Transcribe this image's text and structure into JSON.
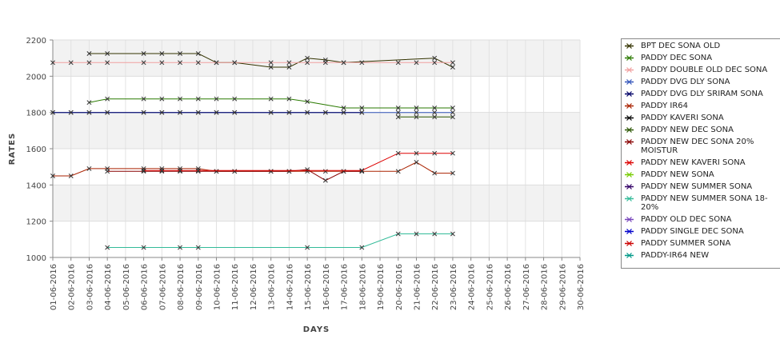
{
  "chart_data": {
    "type": "line",
    "xlabel": "DAYS",
    "ylabel": "RATES",
    "ylim": [
      1000,
      2200
    ],
    "yticks": [
      "1000",
      "1200",
      "1400",
      "1600",
      "1800",
      "2000",
      "2200"
    ],
    "x": [
      "01-06-2016",
      "02-06-2016",
      "03-06-2016",
      "04-06-2016",
      "05-06-2016",
      "06-06-2016",
      "07-06-2016",
      "08-06-2016",
      "09-06-2016",
      "10-06-2016",
      "11-06-2016",
      "12-06-2016",
      "13-06-2016",
      "14-06-2016",
      "15-06-2016",
      "16-06-2016",
      "17-06-2016",
      "18-06-2016",
      "19-06-2016",
      "20-06-2016",
      "21-06-2016",
      "22-06-2016",
      "23-06-2016",
      "24-06-2016",
      "25-06-2016",
      "26-06-2016",
      "27-06-2016",
      "28-06-2016",
      "29-06-2016",
      "30-06-2016"
    ],
    "grid": true,
    "legend_position": "right",
    "series": [
      {
        "name": "BPT DEC SONA OLD",
        "color": "#333300",
        "points": [
          [
            2,
            2125
          ],
          [
            3,
            2125
          ],
          [
            5,
            2125
          ],
          [
            6,
            2125
          ],
          [
            7,
            2125
          ],
          [
            8,
            2125
          ],
          [
            9,
            2075
          ],
          [
            10,
            2075
          ],
          [
            12,
            2050
          ],
          [
            13,
            2050
          ],
          [
            14,
            2100
          ],
          [
            15,
            2090
          ],
          [
            16,
            2075
          ],
          [
            21,
            2100
          ],
          [
            22,
            2050
          ]
        ]
      },
      {
        "name": "PADDY DEC SONA",
        "color": "#2a7a00",
        "points": [
          [
            2,
            1855
          ],
          [
            3,
            1875
          ],
          [
            5,
            1875
          ],
          [
            6,
            1875
          ],
          [
            7,
            1875
          ],
          [
            8,
            1875
          ],
          [
            9,
            1875
          ],
          [
            10,
            1875
          ],
          [
            12,
            1875
          ],
          [
            13,
            1875
          ],
          [
            14,
            1860
          ],
          [
            16,
            1825
          ],
          [
            17,
            1825
          ],
          [
            19,
            1825
          ],
          [
            20,
            1825
          ],
          [
            21,
            1825
          ],
          [
            22,
            1825
          ]
        ]
      },
      {
        "name": "PADDY DOUBLE OLD DEC SONA",
        "color": "#f0a0a0",
        "points": [
          [
            0,
            2075
          ],
          [
            1,
            2075
          ],
          [
            2,
            2075
          ],
          [
            3,
            2075
          ],
          [
            5,
            2075
          ],
          [
            6,
            2075
          ],
          [
            7,
            2075
          ],
          [
            8,
            2075
          ],
          [
            9,
            2075
          ],
          [
            10,
            2075
          ],
          [
            12,
            2075
          ],
          [
            13,
            2075
          ],
          [
            14,
            2075
          ],
          [
            15,
            2075
          ],
          [
            16,
            2075
          ],
          [
            17,
            2075
          ],
          [
            19,
            2075
          ],
          [
            20,
            2075
          ],
          [
            21,
            2075
          ],
          [
            22,
            2075
          ]
        ]
      },
      {
        "name": "PADDY DVG DLY SONA",
        "color": "#3355bb",
        "points": [
          [
            0,
            1800
          ],
          [
            1,
            1800
          ],
          [
            2,
            1800
          ],
          [
            3,
            1800
          ],
          [
            5,
            1800
          ],
          [
            6,
            1800
          ],
          [
            7,
            1800
          ],
          [
            8,
            1800
          ],
          [
            9,
            1800
          ],
          [
            10,
            1800
          ],
          [
            12,
            1800
          ],
          [
            13,
            1800
          ],
          [
            14,
            1800
          ],
          [
            15,
            1800
          ],
          [
            16,
            1800
          ],
          [
            17,
            1800
          ],
          [
            19,
            1800
          ],
          [
            20,
            1800
          ],
          [
            21,
            1800
          ],
          [
            22,
            1800
          ]
        ]
      },
      {
        "name": "PADDY DVG DLY SRIRAM SONA",
        "color": "#000066",
        "points": [
          [
            0,
            1800
          ],
          [
            1,
            1800
          ],
          [
            2,
            1800
          ],
          [
            3,
            1800
          ],
          [
            5,
            1800
          ],
          [
            6,
            1800
          ],
          [
            7,
            1800
          ],
          [
            8,
            1800
          ],
          [
            9,
            1800
          ],
          [
            10,
            1800
          ],
          [
            12,
            1800
          ],
          [
            13,
            1800
          ],
          [
            14,
            1800
          ],
          [
            15,
            1800
          ],
          [
            16,
            1800
          ],
          [
            17,
            1800
          ]
        ]
      },
      {
        "name": "PADDY IR64",
        "color": "#aa2200",
        "points": [
          [
            0,
            1450
          ],
          [
            1,
            1450
          ],
          [
            2,
            1490
          ],
          [
            3,
            1490
          ],
          [
            5,
            1490
          ],
          [
            6,
            1490
          ],
          [
            7,
            1490
          ],
          [
            8,
            1490
          ],
          [
            9,
            1475
          ],
          [
            10,
            1475
          ],
          [
            12,
            1475
          ],
          [
            13,
            1475
          ],
          [
            14,
            1475
          ],
          [
            15,
            1475
          ],
          [
            16,
            1475
          ],
          [
            17,
            1475
          ],
          [
            19,
            1475
          ],
          [
            20,
            1525
          ],
          [
            21,
            1465
          ],
          [
            22,
            1465
          ]
        ]
      },
      {
        "name": "PADDY KAVERI SONA",
        "color": "#000000",
        "points": []
      },
      {
        "name": "PADDY NEW DEC SONA",
        "color": "#2a5500",
        "points": [
          [
            19,
            1775
          ],
          [
            20,
            1775
          ],
          [
            21,
            1775
          ],
          [
            22,
            1775
          ]
        ]
      },
      {
        "name": "PADDY NEW DEC SONA 20% MOISTUR",
        "color": "#880000",
        "points": [
          [
            3,
            1475
          ],
          [
            5,
            1475
          ],
          [
            6,
            1475
          ],
          [
            7,
            1475
          ],
          [
            8,
            1475
          ],
          [
            9,
            1475
          ],
          [
            10,
            1475
          ],
          [
            12,
            1475
          ],
          [
            13,
            1475
          ],
          [
            14,
            1485
          ],
          [
            15,
            1425
          ],
          [
            16,
            1475
          ],
          [
            17,
            1475
          ]
        ]
      },
      {
        "name": "PADDY NEW KAVERI SONA",
        "color": "#dd0000",
        "points": [
          [
            5,
            1480
          ],
          [
            6,
            1480
          ],
          [
            7,
            1480
          ],
          [
            8,
            1480
          ],
          [
            17,
            1480
          ],
          [
            19,
            1575
          ],
          [
            20,
            1575
          ],
          [
            21,
            1575
          ],
          [
            22,
            1575
          ]
        ]
      },
      {
        "name": "PADDY NEW SONA",
        "color": "#77cc00",
        "points": []
      },
      {
        "name": "PADDY NEW SUMMER SONA",
        "color": "#330066",
        "points": []
      },
      {
        "name": "PADDY NEW SUMMER SONA 18-20%",
        "color": "#33bb99",
        "points": [
          [
            3,
            1055
          ],
          [
            5,
            1055
          ],
          [
            7,
            1055
          ],
          [
            8,
            1055
          ],
          [
            14,
            1055
          ],
          [
            17,
            1055
          ],
          [
            19,
            1130
          ],
          [
            20,
            1130
          ],
          [
            21,
            1130
          ],
          [
            22,
            1130
          ]
        ]
      },
      {
        "name": "PADDY OLD DEC SONA",
        "color": "#7744bb",
        "points": []
      },
      {
        "name": "PADDY SINGLE DEC SONA",
        "color": "#0000cc",
        "points": []
      },
      {
        "name": "PADDY SUMMER SONA",
        "color": "#cc0000",
        "points": []
      },
      {
        "name": "PADDY-IR64 NEW",
        "color": "#009988",
        "points": []
      }
    ]
  }
}
